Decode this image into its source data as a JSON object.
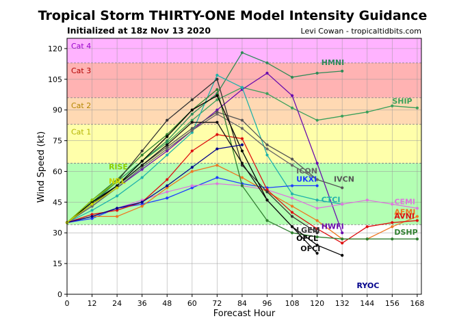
{
  "header": {
    "title": "Tropical Storm THIRTY-ONE Model Intensity Guidance",
    "subtitle": "Initialized at 18z Nov 13 2020",
    "credit": "Levi Cowan - tropicaltidbits.com"
  },
  "chart_data": {
    "type": "line",
    "title": "Tropical Storm THIRTY-ONE Model Intensity Guidance",
    "xlabel": "Forecast Hour",
    "ylabel": "Wind Speed (kt)",
    "xlim": [
      0,
      170
    ],
    "ylim": [
      0,
      125
    ],
    "xticks": [
      0,
      12,
      24,
      36,
      48,
      60,
      72,
      84,
      96,
      108,
      120,
      132,
      144,
      156,
      168
    ],
    "yticks": [
      0,
      15,
      30,
      45,
      60,
      75,
      90,
      105,
      120
    ],
    "bands": [
      {
        "from": 0,
        "to": 34,
        "color": "#ffffff",
        "label": ""
      },
      {
        "from": 34,
        "to": 64,
        "color": "#b3ffb3",
        "label": ""
      },
      {
        "from": 64,
        "to": 83,
        "color": "#ffffaa",
        "label": "Cat 1",
        "label_color": "#b3b300"
      },
      {
        "from": 83,
        "to": 96,
        "color": "#ffd9b3",
        "label": "Cat 2",
        "label_color": "#b38600"
      },
      {
        "from": 96,
        "to": 113,
        "color": "#ffb3b3",
        "label": "Cat 3",
        "label_color": "#b30000"
      },
      {
        "from": 113,
        "to": 125,
        "color": "#ffb3ff",
        "label": "Cat 4",
        "label_color": "#9900cc"
      }
    ],
    "series": [
      {
        "name": "HMNI",
        "color": "#2e8b57",
        "x": [
          0,
          12,
          24,
          36,
          48,
          60,
          72,
          84,
          96,
          108,
          120,
          132
        ],
        "y": [
          35,
          45,
          55,
          65,
          75,
          88,
          98,
          118,
          113,
          106,
          108,
          109
        ],
        "label_at": [
          122,
          112
        ]
      },
      {
        "name": "SHIP",
        "color": "#3aa05a",
        "x": [
          0,
          12,
          24,
          36,
          48,
          60,
          72,
          84,
          96,
          108,
          120,
          132,
          144,
          156,
          168
        ],
        "y": [
          35,
          44,
          55,
          65,
          74,
          85,
          95,
          101,
          98,
          91,
          85,
          87,
          89,
          92,
          91
        ],
        "label_at": [
          156,
          93
        ]
      },
      {
        "name": "HWFI",
        "color": "#6a0dad",
        "x": [
          0,
          12,
          24,
          36,
          48,
          60,
          72,
          84,
          96,
          108,
          120,
          132
        ],
        "y": [
          35,
          43,
          52,
          61,
          70,
          80,
          90,
          100,
          108,
          97,
          64,
          30
        ],
        "label_at": [
          122,
          32
        ]
      },
      {
        "name": "CTCI",
        "color": "#20b2aa",
        "x": [
          0,
          12,
          24,
          36,
          48,
          60,
          72,
          84,
          96,
          108,
          120,
          132
        ],
        "y": [
          35,
          41,
          48,
          57,
          68,
          79,
          107,
          101,
          68,
          49,
          46,
          44
        ],
        "label_at": [
          122,
          45
        ]
      },
      {
        "name": "IVCN",
        "color": "#555555",
        "x": [
          0,
          12,
          24,
          36,
          48,
          60,
          72,
          84,
          96,
          108,
          120,
          132
        ],
        "y": [
          35,
          44,
          53,
          63,
          72,
          81,
          89,
          85,
          73,
          66,
          56,
          52
        ],
        "label_at": [
          128,
          55
        ]
      },
      {
        "name": "ICON",
        "color": "#666666",
        "x": [
          0,
          12,
          24,
          36,
          48,
          60,
          72,
          84,
          96,
          108,
          120
        ],
        "y": [
          35,
          43,
          52,
          62,
          71,
          80,
          88,
          81,
          71,
          63,
          56
        ],
        "label_at": [
          110,
          59
        ]
      },
      {
        "name": "UKXI",
        "color": "#1e3cff",
        "x": [
          0,
          12,
          24,
          36,
          48,
          60,
          72,
          84,
          96,
          108,
          120
        ],
        "y": [
          35,
          37,
          42,
          44,
          47,
          52,
          57,
          54,
          52,
          53,
          53
        ],
        "label_at": [
          110,
          55
        ]
      },
      {
        "name": "CEMI",
        "color": "#dd77dd",
        "x": [
          0,
          12,
          24,
          36,
          48,
          60,
          72,
          84,
          96,
          108,
          120,
          132,
          144,
          156,
          168
        ],
        "y": [
          35,
          38,
          42,
          46,
          50,
          53,
          54,
          53,
          51,
          47,
          42,
          44,
          46,
          44,
          42
        ],
        "label_at": [
          157,
          44
        ]
      },
      {
        "name": "AEMI",
        "color": "#ee7722",
        "x": [
          0,
          12,
          24,
          36,
          48,
          60,
          72,
          84,
          96,
          108,
          120,
          132,
          144,
          156,
          168
        ],
        "y": [
          35,
          38,
          38,
          43,
          52,
          60,
          63,
          57,
          50,
          43,
          36,
          27,
          27,
          33,
          38
        ],
        "label_at": [
          157,
          39
        ]
      },
      {
        "name": "AVNI",
        "color": "#dd1111",
        "x": [
          0,
          12,
          24,
          36,
          48,
          60,
          72,
          84,
          96,
          108,
          120,
          132,
          144,
          156,
          168
        ],
        "y": [
          35,
          39,
          41,
          45,
          56,
          70,
          78,
          76,
          51,
          40,
          32,
          25,
          33,
          35,
          36
        ],
        "label_at": [
          157,
          37
        ]
      },
      {
        "name": "DSHP",
        "color": "#2f7f2f",
        "x": [
          0,
          12,
          24,
          36,
          48,
          60,
          72,
          84,
          96,
          108,
          120,
          132,
          144,
          156,
          168
        ],
        "y": [
          35,
          46,
          56,
          68,
          78,
          90,
          100,
          53,
          36,
          30,
          28,
          27,
          27,
          27,
          27
        ],
        "label_at": [
          157,
          29
        ]
      },
      {
        "name": "LGEM",
        "color": "#333333",
        "x": [
          0,
          12,
          24,
          36,
          48,
          60,
          72,
          84,
          96,
          108,
          120
        ],
        "y": [
          35,
          46,
          55,
          70,
          85,
          95,
          105,
          63,
          50,
          38,
          30
        ],
        "label_at": [
          110,
          30
        ]
      },
      {
        "name": "OFCL",
        "color": "#000000",
        "x": [
          0,
          12,
          24,
          36,
          48,
          60,
          72,
          84,
          96,
          108,
          120,
          132
        ],
        "y": [
          35,
          45,
          53,
          65,
          77,
          90,
          97,
          70,
          46,
          33,
          24,
          19
        ],
        "label_at": [
          110,
          26
        ]
      },
      {
        "name": "OFCI",
        "color": "#111111",
        "x": [
          0,
          12,
          24,
          36,
          48,
          60,
          72,
          84,
          96,
          108,
          120
        ],
        "y": [
          35,
          44,
          53,
          63,
          73,
          84,
          84,
          64,
          46,
          33,
          20
        ],
        "label_at": [
          112,
          21
        ]
      },
      {
        "name": "RYOC",
        "color": "#00008b",
        "x": [
          0,
          12,
          24,
          36,
          48,
          60,
          72,
          84
        ],
        "y": [
          35,
          38,
          42,
          45,
          53,
          62,
          71,
          73
        ],
        "label_at": [
          139,
          3
        ]
      },
      {
        "name": "RISE",
        "color": "#8fce00",
        "x": [
          0,
          12,
          24
        ],
        "y": [
          35,
          46,
          55
        ],
        "label_at": [
          20,
          61
        ]
      },
      {
        "name": "NRL",
        "color": "#c9d400",
        "x": [
          0,
          12,
          24
        ],
        "y": [
          35,
          44,
          52
        ],
        "label_at": [
          20,
          54
        ]
      }
    ]
  }
}
